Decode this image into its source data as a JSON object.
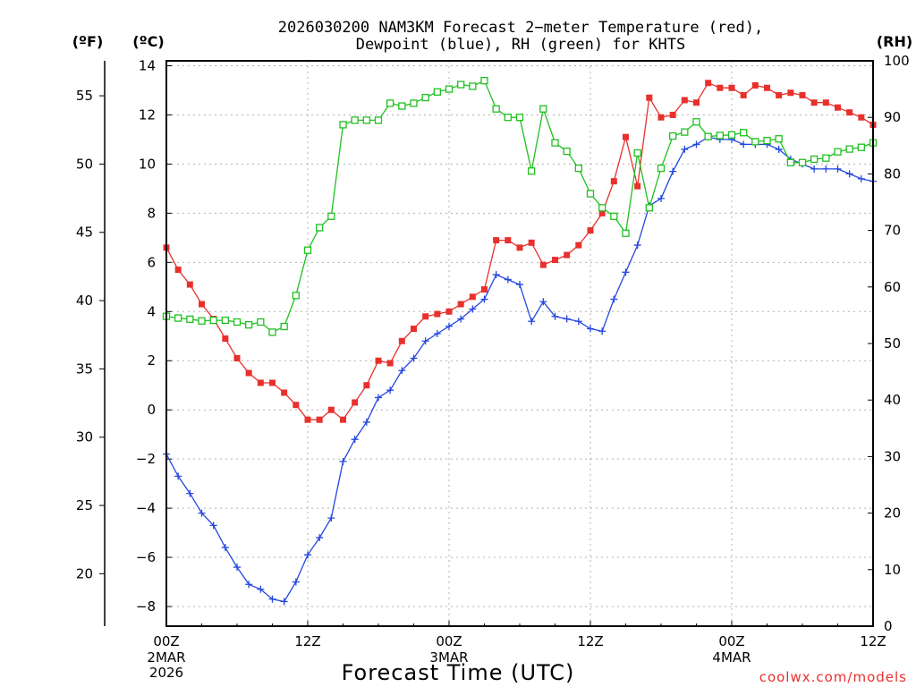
{
  "chart_data": {
    "type": "line",
    "title_line1": "2026030200 NAM3KM Forecast 2−meter Temperature (red),",
    "title_line2": "Dewpoint (blue), RH (green) for KHTS",
    "xlabel": "Forecast Time (UTC)",
    "credit": "coolwx.com/models",
    "units": {
      "fahrenheit": "(ºF)",
      "celsius": "(ºC)",
      "rh": "(RH)"
    },
    "x_ticks": [
      {
        "hour": 0,
        "label": "00Z",
        "sub1": "2MAR",
        "sub2": "2026"
      },
      {
        "hour": 12,
        "label": "12Z",
        "sub1": "",
        "sub2": ""
      },
      {
        "hour": 24,
        "label": "00Z",
        "sub1": "3MAR",
        "sub2": ""
      },
      {
        "hour": 36,
        "label": "12Z",
        "sub1": "",
        "sub2": ""
      },
      {
        "hour": 48,
        "label": "00Z",
        "sub1": "4MAR",
        "sub2": ""
      },
      {
        "hour": 60,
        "label": "12Z",
        "sub1": "",
        "sub2": ""
      }
    ],
    "x_range": [
      0,
      60
    ],
    "y_celsius_range": [
      -8.8,
      14.2
    ],
    "y_celsius_ticks": [
      {
        "value": 14,
        "label": "14"
      },
      {
        "value": 12,
        "label": "12"
      },
      {
        "value": 10,
        "label": "10"
      },
      {
        "value": 8,
        "label": "8"
      },
      {
        "value": 6,
        "label": "6"
      },
      {
        "value": 4,
        "label": "4"
      },
      {
        "value": 2,
        "label": "2"
      },
      {
        "value": 0,
        "label": "0"
      },
      {
        "value": -2,
        "label": "−2"
      },
      {
        "value": -4,
        "label": "−4"
      },
      {
        "value": -6,
        "label": "−6"
      },
      {
        "value": -8,
        "label": "−8"
      }
    ],
    "y_fahrenheit_ticks": [
      {
        "value": 55,
        "label": "55"
      },
      {
        "value": 50,
        "label": "50"
      },
      {
        "value": 45,
        "label": "45"
      },
      {
        "value": 40,
        "label": "40"
      },
      {
        "value": 35,
        "label": "35"
      },
      {
        "value": 30,
        "label": "30"
      },
      {
        "value": 25,
        "label": "25"
      },
      {
        "value": 20,
        "label": "20"
      }
    ],
    "y_rh_range": [
      0,
      100
    ],
    "y_rh_ticks": [
      {
        "value": 100,
        "label": "100"
      },
      {
        "value": 90,
        "label": "90"
      },
      {
        "value": 80,
        "label": "80"
      },
      {
        "value": 70,
        "label": "70"
      },
      {
        "value": 60,
        "label": "60"
      },
      {
        "value": 50,
        "label": "50"
      },
      {
        "value": 40,
        "label": "40"
      },
      {
        "value": 30,
        "label": "30"
      },
      {
        "value": 20,
        "label": "20"
      },
      {
        "value": 10,
        "label": "10"
      },
      {
        "value": 0,
        "label": "0"
      }
    ],
    "grid": true,
    "hours": [
      0,
      1,
      2,
      3,
      4,
      5,
      6,
      7,
      8,
      9,
      10,
      11,
      12,
      13,
      14,
      15,
      16,
      17,
      18,
      19,
      20,
      21,
      22,
      23,
      24,
      25,
      26,
      27,
      28,
      29,
      30,
      31,
      32,
      33,
      34,
      35,
      36,
      37,
      38,
      39,
      40,
      41,
      42,
      43,
      44,
      45,
      46,
      47,
      48,
      49,
      50,
      51,
      52,
      53,
      54,
      55,
      56,
      57,
      58,
      59,
      60
    ],
    "series": [
      {
        "name": "2-meter Temperature",
        "axis": "celsius",
        "color": "#e8302c",
        "marker": "filled-square",
        "values": [
          6.6,
          5.7,
          5.1,
          4.3,
          3.7,
          2.9,
          2.1,
          1.5,
          1.1,
          1.1,
          0.7,
          0.2,
          -0.4,
          -0.4,
          0.0,
          -0.4,
          0.3,
          1.0,
          2.0,
          1.9,
          2.8,
          3.3,
          3.8,
          3.9,
          4.0,
          4.3,
          4.6,
          4.9,
          6.9,
          6.9,
          6.6,
          6.8,
          5.9,
          6.1,
          6.3,
          6.7,
          7.3,
          8.0,
          9.3,
          11.1,
          9.1,
          12.7,
          11.9,
          12.0,
          12.6,
          12.5,
          13.3,
          13.1,
          13.1,
          12.8,
          13.2,
          13.1,
          12.8,
          12.9,
          12.8,
          12.5,
          12.5,
          12.3,
          12.1,
          11.9,
          11.6
        ]
      },
      {
        "name": "Dewpoint",
        "axis": "celsius",
        "color": "#2547e0",
        "marker": "plus",
        "values": [
          -1.8,
          -2.7,
          -3.4,
          -4.2,
          -4.7,
          -5.6,
          -6.4,
          -7.1,
          -7.3,
          -7.7,
          -7.8,
          -7.0,
          -5.9,
          -5.2,
          -4.4,
          -2.1,
          -1.2,
          -0.5,
          0.5,
          0.8,
          1.6,
          2.1,
          2.8,
          3.1,
          3.4,
          3.7,
          4.1,
          4.5,
          5.5,
          5.3,
          5.1,
          3.6,
          4.4,
          3.8,
          3.7,
          3.6,
          3.3,
          3.2,
          4.5,
          5.6,
          6.7,
          8.3,
          8.6,
          9.7,
          10.6,
          10.8,
          11.1,
          11.0,
          11.0,
          10.8,
          10.8,
          10.8,
          10.6,
          10.2,
          10.0,
          9.8,
          9.8,
          9.8,
          9.6,
          9.4,
          9.3
        ]
      },
      {
        "name": "Relative Humidity",
        "axis": "rh",
        "color": "#20c020",
        "marker": "open-square",
        "values": [
          54.8,
          54.5,
          54.3,
          54.0,
          54.1,
          54.1,
          53.8,
          53.3,
          53.8,
          52.0,
          53.0,
          58.5,
          66.5,
          70.5,
          72.5,
          88.7,
          89.5,
          89.5,
          89.5,
          92.5,
          92.0,
          92.5,
          93.5,
          94.5,
          95.0,
          95.8,
          95.5,
          96.5,
          91.5,
          90.0,
          90.0,
          80.5,
          91.5,
          85.5,
          84.0,
          81.0,
          76.5,
          74.0,
          72.5,
          69.5,
          83.7,
          74.0,
          81.0,
          86.7,
          87.4,
          89.2,
          86.6,
          86.8,
          86.9,
          87.3,
          85.7,
          85.9,
          86.2,
          82.0,
          82.0,
          82.6,
          82.8,
          83.9,
          84.4,
          84.7,
          85.5
        ]
      }
    ]
  }
}
